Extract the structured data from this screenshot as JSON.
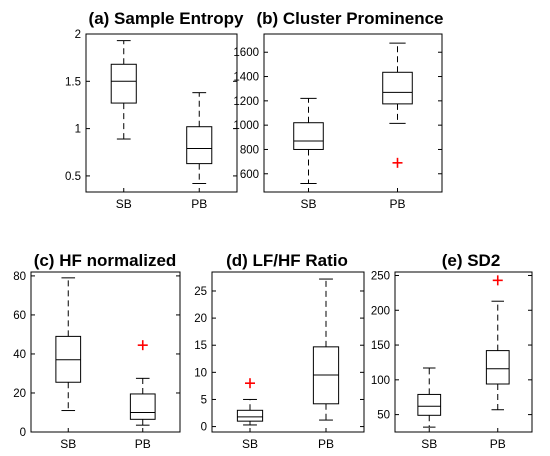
{
  "chart_data": [
    {
      "type": "box",
      "title": "(a) Sample Entropy",
      "categories": [
        "SB",
        "PB"
      ],
      "ylim": [
        0.33,
        2.0
      ],
      "yticks": [
        0.5,
        1,
        1.5,
        2
      ],
      "ytick_labels": [
        "0.5",
        "1",
        "1.5",
        "2"
      ],
      "boxes": [
        {
          "category": "SB",
          "whisker_low": 0.89,
          "q1": 1.27,
          "median": 1.5,
          "q3": 1.68,
          "whisker_high": 1.93,
          "outliers": []
        },
        {
          "category": "PB",
          "whisker_low": 0.42,
          "q1": 0.63,
          "median": 0.79,
          "q3": 1.02,
          "whisker_high": 1.38,
          "outliers": []
        }
      ]
    },
    {
      "type": "box",
      "title": "(b) Cluster Prominence",
      "categories": [
        "SB",
        "PB"
      ],
      "ylim": [
        450,
        1750
      ],
      "yticks": [
        600,
        800,
        1000,
        1200,
        1400,
        1600
      ],
      "ytick_labels": [
        "600",
        "800",
        "1000",
        "1200",
        "1400",
        "1600"
      ],
      "boxes": [
        {
          "category": "SB",
          "whisker_low": 520,
          "q1": 800,
          "median": 870,
          "q3": 1020,
          "whisker_high": 1220,
          "outliers": []
        },
        {
          "category": "PB",
          "whisker_low": 1015,
          "q1": 1175,
          "median": 1270,
          "q3": 1435,
          "whisker_high": 1675,
          "outliers": [
            690
          ]
        }
      ]
    },
    {
      "type": "box",
      "title": "(c) HF normalized",
      "categories": [
        "SB",
        "PB"
      ],
      "ylim": [
        0,
        82
      ],
      "yticks": [
        0,
        20,
        40,
        60,
        80
      ],
      "ytick_labels": [
        "0",
        "20",
        "40",
        "60",
        "80"
      ],
      "boxes": [
        {
          "category": "SB",
          "whisker_low": 11,
          "q1": 25.5,
          "median": 37,
          "q3": 49,
          "whisker_high": 79,
          "outliers": []
        },
        {
          "category": "PB",
          "whisker_low": 3.5,
          "q1": 6.5,
          "median": 10,
          "q3": 19.5,
          "whisker_high": 27.5,
          "outliers": [
            44.5
          ]
        }
      ]
    },
    {
      "type": "box",
      "title": "(d) LF/HF Ratio",
      "categories": [
        "SB",
        "PB"
      ],
      "ylim": [
        -1,
        28.5
      ],
      "yticks": [
        0,
        5,
        10,
        15,
        20,
        25
      ],
      "ytick_labels": [
        "0",
        "5",
        "10",
        "15",
        "20",
        "25"
      ],
      "boxes": [
        {
          "category": "SB",
          "whisker_low": 0.3,
          "q1": 1.0,
          "median": 1.8,
          "q3": 3.0,
          "whisker_high": 5.0,
          "outliers": [
            8.0
          ]
        },
        {
          "category": "PB",
          "whisker_low": 1.2,
          "q1": 4.2,
          "median": 9.5,
          "q3": 14.7,
          "whisker_high": 27.2,
          "outliers": []
        }
      ]
    },
    {
      "type": "box",
      "title": "(e) SD2",
      "categories": [
        "SB",
        "PB"
      ],
      "ylim": [
        25,
        255
      ],
      "yticks": [
        50,
        100,
        150,
        200,
        250
      ],
      "ytick_labels": [
        "50",
        "100",
        "150",
        "200",
        "250"
      ],
      "boxes": [
        {
          "category": "SB",
          "whisker_low": 32,
          "q1": 49,
          "median": 62,
          "q3": 79,
          "whisker_high": 117,
          "outliers": []
        },
        {
          "category": "PB",
          "whisker_low": 57,
          "q1": 94,
          "median": 116,
          "q3": 142,
          "whisker_high": 213,
          "outliers": [
            243
          ]
        }
      ]
    }
  ],
  "colors": {
    "box": "#000000",
    "outlier": "#ff0000",
    "axes": "#000000"
  }
}
